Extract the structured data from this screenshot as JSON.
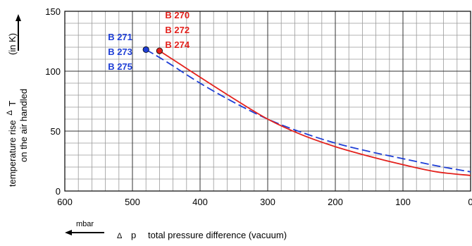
{
  "chart_data": {
    "type": "line",
    "x_ticks": [
      600,
      500,
      400,
      300,
      200,
      100,
      0
    ],
    "y_ticks": [
      0,
      50,
      100,
      150
    ],
    "xlim": [
      600,
      0
    ],
    "ylim": [
      0,
      150
    ],
    "grid": true,
    "ylabel_line1": "temperature rise",
    "ylabel_delta": "Δ",
    "ylabel_symbol": "T",
    "ylabel_unit": "(in K)",
    "ylabel_line2": "on the air handled",
    "xlabel_unit": "mbar",
    "xlabel_delta": "Δ",
    "xlabel_symbol": "p",
    "xlabel_text": "total pressure difference (vacuum)",
    "series": [
      {
        "name_lines": [
          "B 271",
          "B 273",
          "B 275"
        ],
        "color": "#1f3fd6",
        "dash": "dashed",
        "x": [
          480,
          450,
          400,
          350,
          300,
          250,
          200,
          150,
          100,
          50,
          0
        ],
        "y": [
          118,
          108,
          90,
          74,
          60,
          49,
          40,
          33,
          27,
          21,
          16
        ]
      },
      {
        "name_lines": [
          "B 270",
          "B 272",
          "B 274"
        ],
        "color": "#e3211c",
        "dash": "solid",
        "x": [
          460,
          430,
          400,
          350,
          300,
          250,
          200,
          150,
          100,
          50,
          0
        ],
        "y": [
          117,
          106,
          95,
          77,
          60,
          47,
          37,
          29,
          22,
          16,
          13
        ]
      }
    ]
  }
}
